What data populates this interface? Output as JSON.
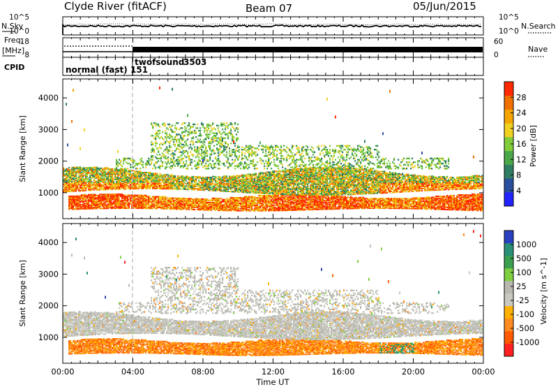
{
  "header": {
    "station": "Clyde River (fitACF)",
    "beam": "Beam 07",
    "date": "05/Jun/2015"
  },
  "strips": {
    "nsky_label": "N.Sky",
    "nsearch_label": "N.Search",
    "nsky_ticks": [
      "10^5",
      "10^0"
    ],
    "nsky_right_ticks": [
      "10^5",
      "10^0"
    ],
    "freq_label_1": "Freq.",
    "freq_label_2": "[MHz]",
    "freq_ticks": [
      "18",
      "8"
    ],
    "nave_label": "Nave",
    "nave_ticks": [
      "60",
      "0"
    ],
    "cpid_label": "CPID",
    "modes": [
      {
        "name": "normal (fast)",
        "cpid": "151",
        "start_hour": 0
      },
      {
        "name": "twofsound",
        "cpid": "3503",
        "start_hour": 4
      }
    ]
  },
  "x_axis": {
    "label": "Time UT",
    "ticks": [
      "00:00",
      "04:00",
      "08:00",
      "12:00",
      "16:00",
      "20:00",
      "00:00"
    ]
  },
  "colors": {
    "power": [
      "#2222ff",
      "#2a4f9c",
      "#2f7d63",
      "#4aa84a",
      "#80cc3a",
      "#f0d020",
      "#f5a500",
      "#f07000",
      "#ff2a00"
    ],
    "velocity": [
      "#ff2020",
      "#ff5a00",
      "#ff8a20",
      "#ffb000",
      "#c8c8c0",
      "#b8b8b0",
      "#7ed040",
      "#3aa050",
      "#2a9078",
      "#2840c0"
    ],
    "ground_scatter": "#b0b0aa"
  },
  "chart_data": [
    {
      "type": "heatmap",
      "title": "Power",
      "ylabel": "Slant Range [km]",
      "xlabel": "",
      "colorbar_label": "Power [dB]",
      "colorbar_ticks": [
        "28",
        "24",
        "20",
        "16",
        "12",
        "8",
        "4"
      ],
      "clim": [
        0,
        32
      ],
      "xlim_hours": [
        0,
        24
      ],
      "ylim_km": [
        180,
        4600
      ],
      "yticks": [
        "4000",
        "3000",
        "2000",
        "1000"
      ],
      "regions": [
        {
          "feature": "near-range band (strong)",
          "t_hours": [
            0.3,
            24
          ],
          "range_km": [
            480,
            900
          ],
          "power_db": 26
        },
        {
          "feature": "main band",
          "t_hours": [
            0,
            24
          ],
          "range_km": [
            900,
            1700
          ],
          "power_db": 22
        },
        {
          "feature": "upper scatter",
          "t_hours": [
            3,
            22
          ],
          "range_km": [
            1700,
            3300
          ],
          "power_db": 12
        }
      ]
    },
    {
      "type": "heatmap",
      "title": "Velocity",
      "ylabel": "Slant Range [km]",
      "xlabel": "Time UT",
      "colorbar_label": "Velocity [m s^-1]",
      "colorbar_ticks": [
        "1000",
        "500",
        "100",
        "25",
        "-25",
        "-100",
        "-500",
        "-1000"
      ],
      "clim": [
        -1000,
        1000
      ],
      "xlim_hours": [
        0,
        24
      ],
      "ylim_km": [
        180,
        4600
      ],
      "yticks": [
        "4000",
        "3000",
        "2000",
        "1000"
      ],
      "regions": [
        {
          "feature": "near-range band",
          "t_hours": [
            0.3,
            24
          ],
          "range_km": [
            450,
            900
          ],
          "velocity_ms": -150
        },
        {
          "feature": "ground scatter band",
          "t_hours": [
            0,
            24
          ],
          "range_km": [
            1100,
            1800
          ],
          "velocity_ms": 0
        },
        {
          "feature": "upper scatter",
          "t_hours": [
            3,
            22
          ],
          "range_km": [
            1700,
            3300
          ],
          "velocity_ms": 0
        }
      ]
    }
  ]
}
